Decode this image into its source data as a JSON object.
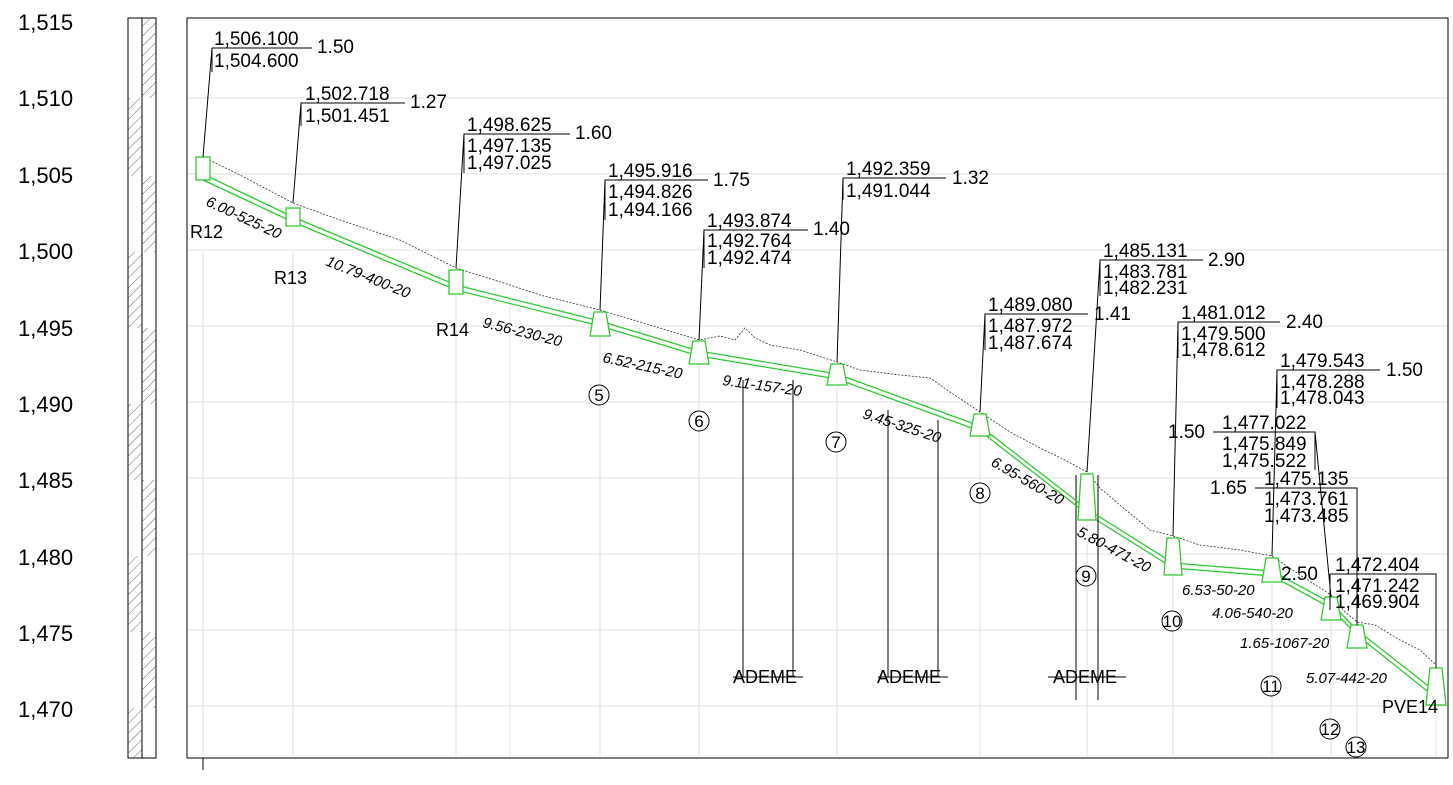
{
  "y_axis": {
    "ticks": [
      "1,515",
      "1,510",
      "1,505",
      "1,500",
      "1,495",
      "1,490",
      "1,485",
      "1,480",
      "1,475",
      "1,470"
    ]
  },
  "nodes": [
    {
      "id": "R12",
      "label": "R12",
      "elevations": [
        "1,506.100",
        "1,504.600"
      ],
      "depth": "1.50"
    },
    {
      "id": "R13",
      "label": "R13",
      "elevations": [
        "1,502.718",
        "1,501.451"
      ],
      "depth": "1.27"
    },
    {
      "id": "R14",
      "label": "R14",
      "elevations": [
        "1,498.625",
        "1,497.135",
        "1,497.025"
      ],
      "depth": "1.60"
    },
    {
      "id": "5",
      "label": "5",
      "elevations": [
        "1,495.916",
        "1,494.826",
        "1,494.166"
      ],
      "depth": "1.75"
    },
    {
      "id": "6",
      "label": "6",
      "elevations": [
        "1,493.874",
        "1,492.764",
        "1,492.474"
      ],
      "depth": "1.40"
    },
    {
      "id": "7",
      "label": "7",
      "elevations": [
        "1,492.359",
        "1,491.044"
      ],
      "depth": "1.32"
    },
    {
      "id": "8",
      "label": "8",
      "elevations": [
        "1,489.080",
        "1,487.972",
        "1,487.674"
      ],
      "depth": "1.41"
    },
    {
      "id": "9",
      "label": "9",
      "elevations": [
        "1,485.131",
        "1,483.781",
        "1,482.231"
      ],
      "depth": "2.90"
    },
    {
      "id": "10",
      "label": "10",
      "elevations": [
        "1,481.012",
        "1,479.500",
        "1,478.612"
      ],
      "depth": "2.40"
    },
    {
      "id": "11",
      "label": "11",
      "elevations": [
        "1,479.543",
        "1,478.288",
        "1,478.043"
      ],
      "depth": "1.50"
    },
    {
      "id": "12",
      "label": "12",
      "elevations": [
        "1,477.022",
        "1,475.849",
        "1,475.522"
      ],
      "depth": "1.50"
    },
    {
      "id": "13",
      "label": "13",
      "elevations": [
        "1,475.135",
        "1,473.761",
        "1,473.485"
      ],
      "depth": "1.65"
    },
    {
      "id": "PVE14",
      "label": "PVE14",
      "elevations": [
        "1,472.404",
        "1,471.242",
        "1,469.904"
      ],
      "depth": "2.50"
    }
  ],
  "segments": [
    "6.00-525-20",
    "10.79-400-20",
    "9.56-230-20",
    "6.52-215-20",
    "9.11-157-20",
    "9.45-325-20",
    "6.95-560-20",
    "5.80-471-20",
    "6.53-50-20",
    "4.06-540-20",
    "1.65-1067-20",
    "5.07-442-20"
  ],
  "ademe_label": "ADEME",
  "colors": {
    "pipe": "#31c831",
    "ground": "#333333",
    "grid": "#e2e2e2"
  }
}
